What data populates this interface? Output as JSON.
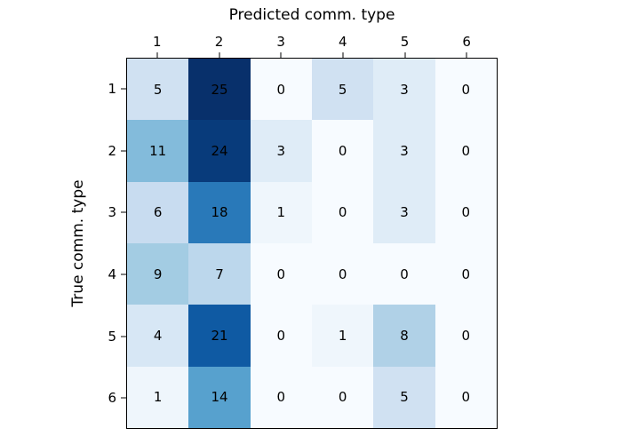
{
  "figure": {
    "background_color": "#ffffff",
    "axis_color": "#000000",
    "cell_text_color": "#000000"
  },
  "chart_data": {
    "type": "heatmap",
    "title": "Predicted comm. type",
    "xlabel": "Predicted comm. type",
    "ylabel": "True comm. type",
    "x_tick_labels": [
      "1",
      "2",
      "3",
      "4",
      "5",
      "6"
    ],
    "y_tick_labels": [
      "1",
      "2",
      "3",
      "4",
      "5",
      "6"
    ],
    "matrix": [
      [
        5,
        25,
        0,
        5,
        3,
        0
      ],
      [
        11,
        24,
        3,
        0,
        3,
        0
      ],
      [
        6,
        18,
        1,
        0,
        3,
        0
      ],
      [
        9,
        7,
        0,
        0,
        0,
        0
      ],
      [
        4,
        21,
        0,
        1,
        8,
        0
      ],
      [
        1,
        14,
        0,
        0,
        5,
        0
      ]
    ],
    "vmin": 0,
    "vmax": 25,
    "colormap": "Blues",
    "colormap_stops": [
      "#f7fbff",
      "#deebf7",
      "#c6dbef",
      "#9ecae1",
      "#6baed6",
      "#4292c6",
      "#2171b5",
      "#08519c",
      "#08306b"
    ],
    "legend": "none",
    "grid": false
  }
}
